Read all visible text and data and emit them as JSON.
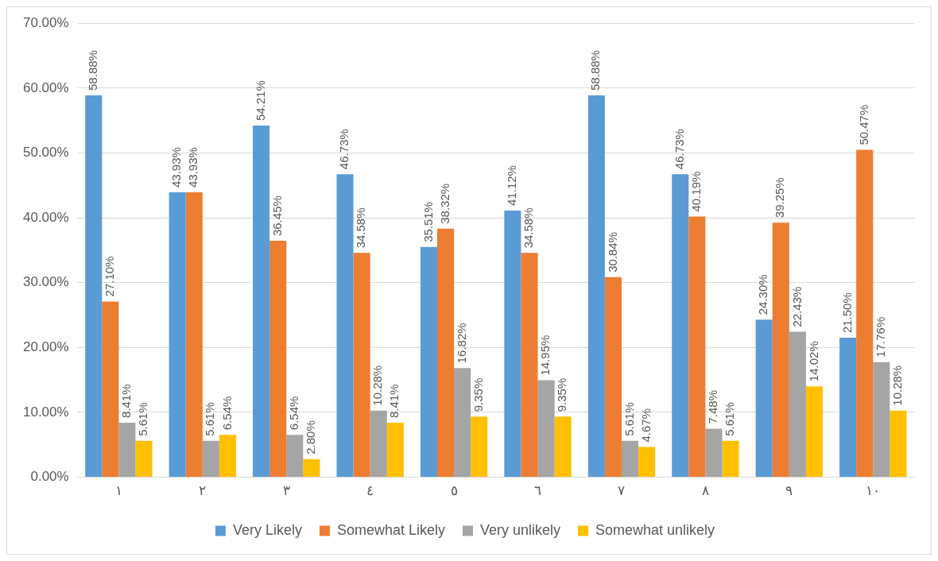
{
  "chart_data": {
    "type": "bar",
    "categories": [
      "١",
      "٢",
      "٣",
      "٤",
      "٥",
      "٦",
      "٧",
      "٨",
      "٩",
      "١٠"
    ],
    "ylim": [
      0,
      70
    ],
    "yticks": [
      {
        "value": 0,
        "label": "0.00%"
      },
      {
        "value": 10,
        "label": "10.00%"
      },
      {
        "value": 20,
        "label": "20.00%"
      },
      {
        "value": 30,
        "label": "30.00%"
      },
      {
        "value": 40,
        "label": "40.00%"
      },
      {
        "value": 50,
        "label": "50.00%"
      },
      {
        "value": 60,
        "label": "60.00%"
      },
      {
        "value": 70,
        "label": "70.00%"
      }
    ],
    "grid": "y",
    "legend": "bottom",
    "series": [
      {
        "name": "Very Likely",
        "color": "#5b9bd5",
        "values": [
          58.88,
          43.93,
          54.21,
          46.73,
          35.51,
          41.12,
          58.88,
          46.73,
          24.3,
          21.5
        ],
        "value_labels": [
          "58.88%",
          "43.93%",
          "54.21%",
          "46.73%",
          "35.51%",
          "41.12%",
          "58.88%",
          "46.73%",
          "24.30%",
          "21.50%"
        ]
      },
      {
        "name": "Somewhat Likely",
        "color": "#ed7d31",
        "values": [
          27.1,
          43.93,
          36.45,
          34.58,
          38.32,
          34.58,
          30.84,
          40.19,
          39.25,
          50.47
        ],
        "value_labels": [
          "27.10%",
          "43.93%",
          "36.45%",
          "34.58%",
          "38.32%",
          "34.58%",
          "30.84%",
          "40.19%",
          "39.25%",
          "50.47%"
        ]
      },
      {
        "name": "Very unlikely",
        "color": "#a5a5a5",
        "values": [
          8.41,
          5.61,
          6.54,
          10.28,
          16.82,
          14.95,
          5.61,
          7.48,
          22.43,
          17.76
        ],
        "value_labels": [
          "8.41%",
          "5.61%",
          "6.54%",
          "10.28%",
          "16.82%",
          "14.95%",
          "5.61%",
          "7.48%",
          "22.43%",
          "17.76%"
        ]
      },
      {
        "name": "Somewhat unlikely",
        "color": "#ffc000",
        "values": [
          5.61,
          6.54,
          2.8,
          8.41,
          9.35,
          9.35,
          4.67,
          5.61,
          14.02,
          10.28
        ],
        "value_labels": [
          "5.61%",
          "6.54%",
          "2.80%",
          "8.41%",
          "9.35%",
          "9.35%",
          "4.67%",
          "5.61%",
          "14.02%",
          "10.28%"
        ]
      }
    ]
  }
}
